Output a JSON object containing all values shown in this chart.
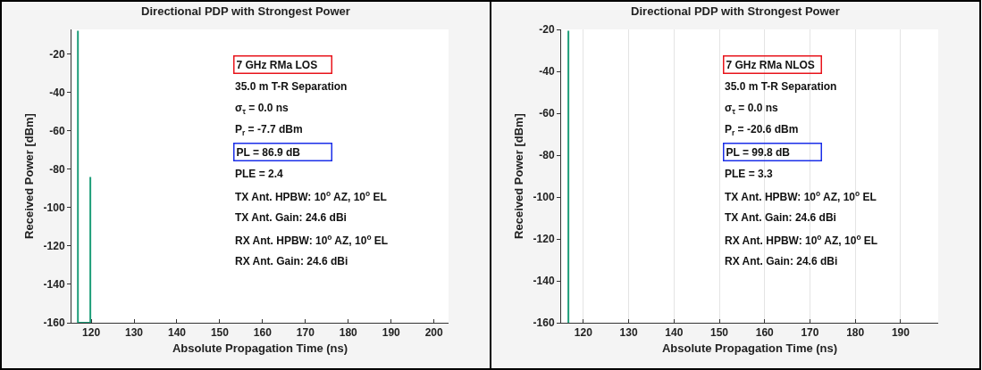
{
  "chart_data": [
    {
      "type": "line",
      "title": "Directional PDP with Strongest Power",
      "xlabel": "Absolute Propagation Time (ns)",
      "ylabel": "Received Power [dBm]",
      "x": [
        116.9,
        116.9,
        119.8,
        119.8
      ],
      "series": [
        {
          "color": "#1f9e7a",
          "values": [
            -7.7,
            -160,
            -160,
            -84
          ]
        }
      ],
      "xlim": [
        115.4,
        203.4
      ],
      "xticks": [
        120,
        130,
        140,
        150,
        160,
        170,
        180,
        190,
        200
      ],
      "ylim": [
        -160,
        -7
      ],
      "yticks": [
        -20,
        -40,
        -60,
        -80,
        -100,
        -120,
        -140,
        -160
      ],
      "annotations": [
        "7 GHz RMa LOS",
        "35.0 m T-R Separation",
        "σ$_{τ}$ = 0.0 ns",
        "P$_{r}$ = -7.7 dBm",
        "PL = 86.9 dB",
        "PLE = 2.4",
        "TX Ant. HPBW: 10$^{o}$ AZ, 10$^{o}$ EL",
        "TX Ant. Gain: 24.6 dBi",
        "RX Ant. HPBW: 10$^{o}$ AZ, 10$^{o}$ EL",
        "RX Ant. Gain: 24.6 dBi"
      ]
    },
    {
      "type": "line",
      "title": "Directional PDP with Strongest Power",
      "xlabel": "Absolute Propagation Time (ns)",
      "ylabel": "Received Power [dBm]",
      "x": [
        116.7,
        116.7
      ],
      "series": [
        {
          "color": "#1f9e7a",
          "values": [
            -160,
            -20.6
          ]
        }
      ],
      "xlim": [
        115.1,
        198.3
      ],
      "xticks": [
        120,
        130,
        140,
        150,
        160,
        170,
        180,
        190
      ],
      "ylim": [
        -160,
        -20
      ],
      "yticks": [
        -20,
        -40,
        -60,
        -80,
        -100,
        -120,
        -140,
        -160
      ],
      "grid": "x",
      "annotations": [
        "7 GHz RMa NLOS",
        "35.0 m T-R Separation",
        "σ$_{τ}$ = 0.0 ns",
        "P$_{r}$ = -20.6 dBm",
        "PL = 99.8 dB",
        "PLE = 3.3",
        "TX Ant. HPBW: 10$^{o}$ AZ, 10$^{o}$ EL",
        "TX Ant. Gain: 24.6 dBi",
        "RX Ant. HPBW: 10$^{o}$ AZ, 10$^{o}$ EL",
        "RX Ant. Gain: 24.6 dBi"
      ]
    }
  ]
}
